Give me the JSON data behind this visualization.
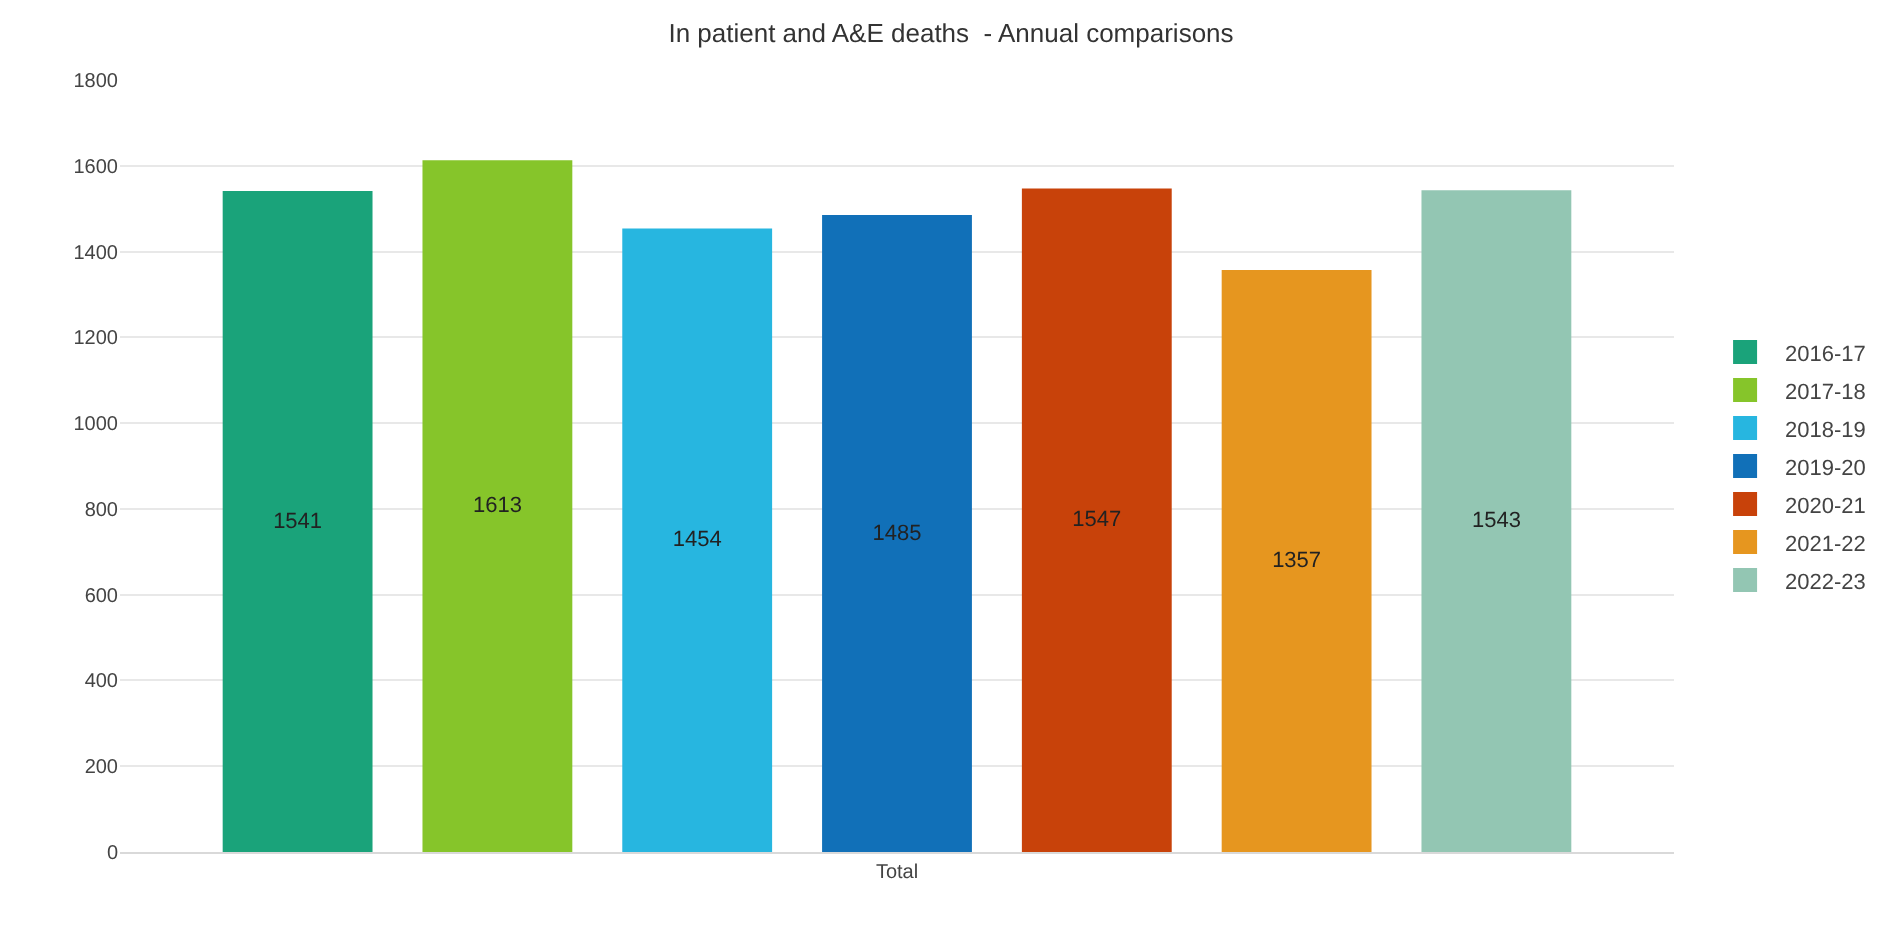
{
  "chart_data": {
    "type": "bar",
    "title": "In patient and A&E deaths  - Annual comparisons",
    "categories": [
      "Total"
    ],
    "series": [
      {
        "name": "2016-17",
        "color": "#1aa37a",
        "values": [
          1541
        ]
      },
      {
        "name": "2017-18",
        "color": "#86c52a",
        "values": [
          1613
        ]
      },
      {
        "name": "2018-19",
        "color": "#27b6e0",
        "values": [
          1454
        ]
      },
      {
        "name": "2019-20",
        "color": "#1170b8",
        "values": [
          1485
        ]
      },
      {
        "name": "2020-21",
        "color": "#c8420a",
        "values": [
          1547
        ]
      },
      {
        "name": "2021-22",
        "color": "#e6961f",
        "values": [
          1357
        ]
      },
      {
        "name": "2022-23",
        "color": "#93c6b3",
        "values": [
          1543
        ]
      }
    ],
    "ylim": [
      0,
      1800
    ],
    "yticks": [
      0,
      200,
      400,
      600,
      800,
      1000,
      1200,
      1400,
      1600,
      1800
    ],
    "grid": "y",
    "legend": "right",
    "data_labels": true
  }
}
